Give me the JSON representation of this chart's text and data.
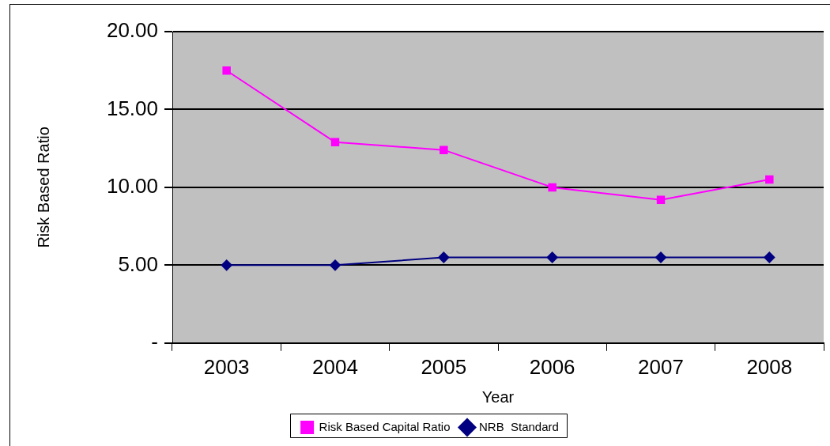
{
  "chart_data": {
    "type": "line",
    "xlabel": "Year",
    "ylabel": "Risk Based Ratio",
    "categories": [
      "2003",
      "2004",
      "2005",
      "2006",
      "2007",
      "2008"
    ],
    "series": [
      {
        "name": "Risk Based Capital Ratio",
        "color": "#ff00ff",
        "marker": "square",
        "values": [
          17.5,
          12.9,
          12.4,
          10.0,
          9.2,
          10.5
        ]
      },
      {
        "name": "NRB  Standard",
        "color": "#000080",
        "marker": "diamond",
        "values": [
          5.0,
          5.0,
          5.5,
          5.5,
          5.5,
          5.5
        ]
      }
    ],
    "ylim": [
      0,
      20
    ],
    "yticks": [
      {
        "value": 0,
        "label": "-"
      },
      {
        "value": 5,
        "label": "5.00"
      },
      {
        "value": 10,
        "label": "10.00"
      },
      {
        "value": 15,
        "label": "15.00"
      },
      {
        "value": 20,
        "label": "20.00"
      }
    ],
    "grid": "y",
    "legend": "bottom",
    "line_style": "solid"
  }
}
